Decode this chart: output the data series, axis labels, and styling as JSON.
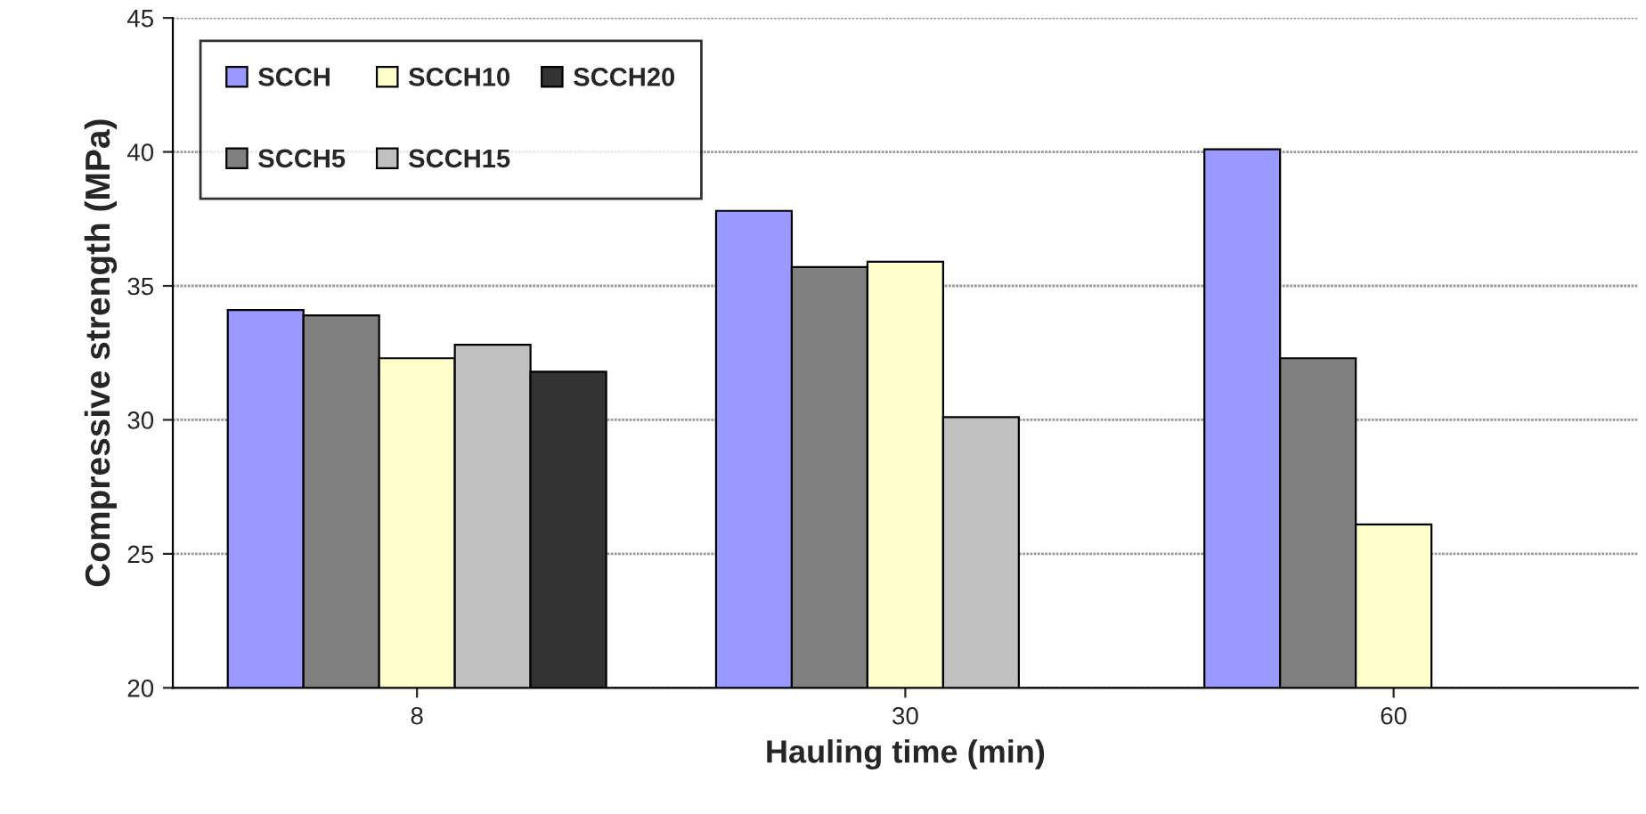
{
  "chart_data": {
    "type": "bar",
    "xlabel": "Hauling time (min)",
    "ylabel": "Compressive strength (MPa)",
    "categories": [
      "8",
      "30",
      "60"
    ],
    "series": [
      {
        "name": "SCCH",
        "color": "#9999ff",
        "values": [
          34.1,
          37.8,
          40.1
        ]
      },
      {
        "name": "SCCH5",
        "color": "#808080",
        "values": [
          33.9,
          35.7,
          32.3
        ]
      },
      {
        "name": "SCCH10",
        "color": "#ffffcc",
        "values": [
          32.3,
          35.9,
          26.1
        ]
      },
      {
        "name": "SCCH15",
        "color": "#c0c0c0",
        "values": [
          32.8,
          30.1,
          null
        ]
      },
      {
        "name": "SCCH20",
        "color": "#333333",
        "values": [
          31.8,
          null,
          null
        ]
      }
    ],
    "ylim": [
      20,
      45
    ],
    "yticks": [
      20,
      25,
      30,
      35,
      40,
      45
    ],
    "grid": "y",
    "legend": "top left"
  }
}
